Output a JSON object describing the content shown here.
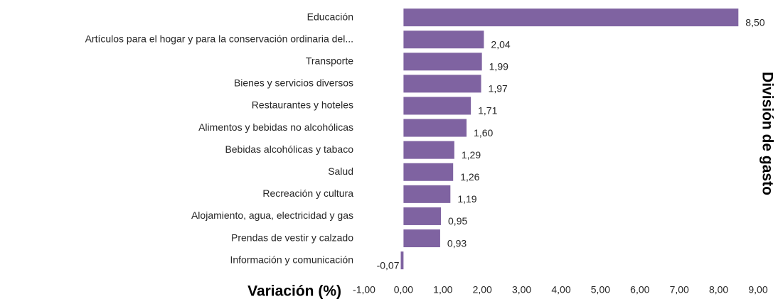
{
  "chart_data": {
    "type": "barh",
    "xlabel": "Variación (%)",
    "ylabel": "División de gasto",
    "categories": [
      "Educación",
      "Artículos para el hogar y para la conservación ordinaria del...",
      "Transporte",
      "Bienes y servicios diversos",
      "Restaurantes y hoteles",
      "Alimentos y bebidas no alcohólicas",
      "Bebidas alcohólicas y tabaco",
      "Salud",
      "Recreación y cultura",
      "Alojamiento, agua, electricidad y gas",
      "Prendas de vestir y calzado",
      "Información y comunicación"
    ],
    "values": [
      8.5,
      2.04,
      1.99,
      1.97,
      1.71,
      1.6,
      1.29,
      1.26,
      1.19,
      0.95,
      0.93,
      -0.07
    ],
    "value_labels": [
      "8,50",
      "2,04",
      "1,99",
      "1,97",
      "1,71",
      "1,60",
      "1,29",
      "1,26",
      "1,19",
      "0,95",
      "0,93",
      "-0,07"
    ],
    "color": "#7f63a1",
    "xlim": [
      -1,
      9
    ],
    "xticks": [
      {
        "value": -1,
        "label": "-1,00"
      },
      {
        "value": 0,
        "label": "0,00"
      },
      {
        "value": 1,
        "label": "1,00"
      },
      {
        "value": 2,
        "label": "2,00"
      },
      {
        "value": 3,
        "label": "3,00"
      },
      {
        "value": 4,
        "label": "4,00"
      },
      {
        "value": 5,
        "label": "5,00"
      },
      {
        "value": 6,
        "label": "6,00"
      },
      {
        "value": 7,
        "label": "7,00"
      },
      {
        "value": 8,
        "label": "8,00"
      },
      {
        "value": 9,
        "label": "9,00"
      }
    ],
    "grid": false
  }
}
